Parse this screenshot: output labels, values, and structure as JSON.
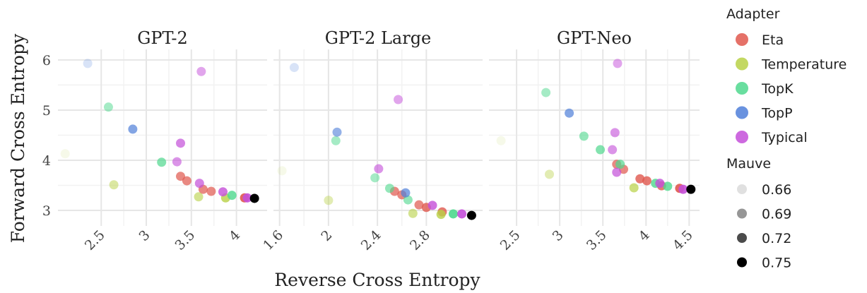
{
  "chart_data": [
    {
      "type": "scatter",
      "title": "GPT-2",
      "xlim": [
        2.02,
        4.34
      ],
      "xticks": [
        2.5,
        3,
        3.5,
        4
      ],
      "ylim": [
        2.69,
        6.21
      ],
      "yticks": [
        3,
        4,
        5,
        6
      ],
      "grid": true,
      "series": [
        {
          "name": "Eta",
          "color": "#e0584e",
          "x": [
            3.38,
            3.45,
            3.63,
            3.72,
            4.09
          ],
          "values": [
            3.68,
            3.59,
            3.42,
            3.38,
            3.25
          ],
          "mauve": [
            0.72,
            0.72,
            0.72,
            0.72,
            0.74
          ]
        },
        {
          "name": "Temperature",
          "color": "#b8d146",
          "x": [
            2.1,
            2.64,
            3.58,
            3.88
          ],
          "values": [
            4.13,
            3.51,
            3.27,
            3.25
          ],
          "mauve": [
            0.66,
            0.7,
            0.71,
            0.73
          ]
        },
        {
          "name": "TopK",
          "color": "#4fd88e",
          "x": [
            2.58,
            3.17,
            3.95
          ],
          "values": [
            5.06,
            3.96,
            3.3
          ],
          "mauve": [
            0.7,
            0.72,
            0.73
          ]
        },
        {
          "name": "TopP",
          "color": "#4f7fd9",
          "x": [
            2.35,
            2.85
          ],
          "values": [
            5.93,
            4.62
          ],
          "mauve": [
            0.67,
            0.72
          ]
        },
        {
          "name": "Typical",
          "color": "#c44fd9",
          "x": [
            3.38,
            3.34,
            3.61,
            3.59,
            3.85,
            4.12
          ],
          "values": [
            4.34,
            3.97,
            5.77,
            3.54,
            3.37,
            3.25
          ],
          "mauve": [
            0.72,
            0.71,
            0.7,
            0.72,
            0.73,
            0.74
          ]
        },
        {
          "color": "#000000",
          "x": [
            4.2
          ],
          "values": [
            3.24
          ],
          "mauve": [
            0.75
          ]
        }
      ]
    },
    {
      "type": "scatter",
      "title": "GPT-2 Large",
      "xlim": [
        1.55,
        3.26
      ],
      "xticks": [
        1.6,
        2,
        2.4,
        2.8
      ],
      "ylim": [
        2.69,
        6.21
      ],
      "yticks": [
        3,
        4,
        5,
        6
      ],
      "grid": true,
      "series": [
        {
          "name": "Eta",
          "color": "#e0584e",
          "x": [
            2.54,
            2.6,
            2.74,
            2.8,
            2.93
          ],
          "values": [
            3.38,
            3.31,
            3.11,
            3.06,
            2.97
          ],
          "mauve": [
            0.72,
            0.72,
            0.72,
            0.73,
            0.73
          ]
        },
        {
          "name": "Temperature",
          "color": "#b8d146",
          "x": [
            1.62,
            2.0,
            2.69,
            2.92
          ],
          "values": [
            3.79,
            3.2,
            2.94,
            2.92
          ],
          "mauve": [
            0.66,
            0.69,
            0.71,
            0.73
          ]
        },
        {
          "name": "TopK",
          "color": "#4fd88e",
          "x": [
            2.06,
            2.38,
            2.5,
            2.65,
            3.02
          ],
          "values": [
            4.39,
            3.65,
            3.44,
            3.21,
            2.93
          ],
          "mauve": [
            0.7,
            0.7,
            0.71,
            0.71,
            0.74
          ]
        },
        {
          "name": "TopP",
          "color": "#4f7fd9",
          "x": [
            1.72,
            2.07,
            2.63
          ],
          "values": [
            5.85,
            4.56,
            3.35
          ],
          "mauve": [
            0.67,
            0.71,
            0.72
          ]
        },
        {
          "name": "Typical",
          "color": "#c44fd9",
          "x": [
            2.57,
            2.41,
            2.85,
            3.09
          ],
          "values": [
            5.21,
            3.83,
            3.1,
            2.93
          ],
          "mauve": [
            0.7,
            0.71,
            0.73,
            0.74
          ]
        },
        {
          "color": "#000000",
          "x": [
            3.17
          ],
          "values": [
            2.9
          ],
          "mauve": [
            0.75
          ]
        }
      ]
    },
    {
      "type": "scatter",
      "title": "GPT-Neo",
      "xlim": [
        2.18,
        4.62
      ],
      "xticks": [
        2.5,
        3,
        3.5,
        4,
        4.5
      ],
      "ylim": [
        2.69,
        6.21
      ],
      "yticks": [
        3,
        4,
        5,
        6
      ],
      "grid": true,
      "series": [
        {
          "name": "Eta",
          "color": "#e0584e",
          "x": [
            3.66,
            3.74,
            3.93,
            4.01,
            4.18,
            4.39
          ],
          "values": [
            3.92,
            3.82,
            3.63,
            3.59,
            3.49,
            3.44
          ],
          "mauve": [
            0.72,
            0.72,
            0.73,
            0.73,
            0.73,
            0.74
          ]
        },
        {
          "name": "Temperature",
          "color": "#b8d146",
          "x": [
            2.32,
            2.88,
            3.86
          ],
          "values": [
            4.39,
            3.72,
            3.45
          ],
          "mauve": [
            0.66,
            0.69,
            0.72
          ]
        },
        {
          "name": "TopK",
          "color": "#4fd88e",
          "x": [
            2.84,
            3.28,
            3.47,
            3.7,
            4.11,
            4.25
          ],
          "values": [
            5.35,
            4.48,
            4.21,
            3.92,
            3.54,
            3.48
          ],
          "mauve": [
            0.7,
            0.71,
            0.72,
            0.72,
            0.73,
            0.73
          ]
        },
        {
          "name": "TopP",
          "color": "#4f7fd9",
          "x": [
            3.11
          ],
          "values": [
            4.94
          ],
          "mauve": [
            0.72
          ]
        },
        {
          "name": "Typical",
          "color": "#c44fd9",
          "x": [
            3.67,
            3.64,
            3.61,
            3.66,
            4.16,
            4.43
          ],
          "values": [
            5.93,
            4.55,
            4.21,
            3.76,
            3.54,
            3.42
          ],
          "mauve": [
            0.7,
            0.71,
            0.71,
            0.72,
            0.73,
            0.74
          ]
        },
        {
          "color": "#000000",
          "x": [
            4.52
          ],
          "values": [
            3.42
          ],
          "mauve": [
            0.75
          ]
        }
      ]
    }
  ],
  "xlabel": "Reverse Cross Entropy",
  "ylabel": "Forward Cross Entropy",
  "legend": {
    "title": "Adapter",
    "size_title": "Mauve",
    "size_values": [
      0.66,
      0.69,
      0.72,
      0.75
    ]
  }
}
